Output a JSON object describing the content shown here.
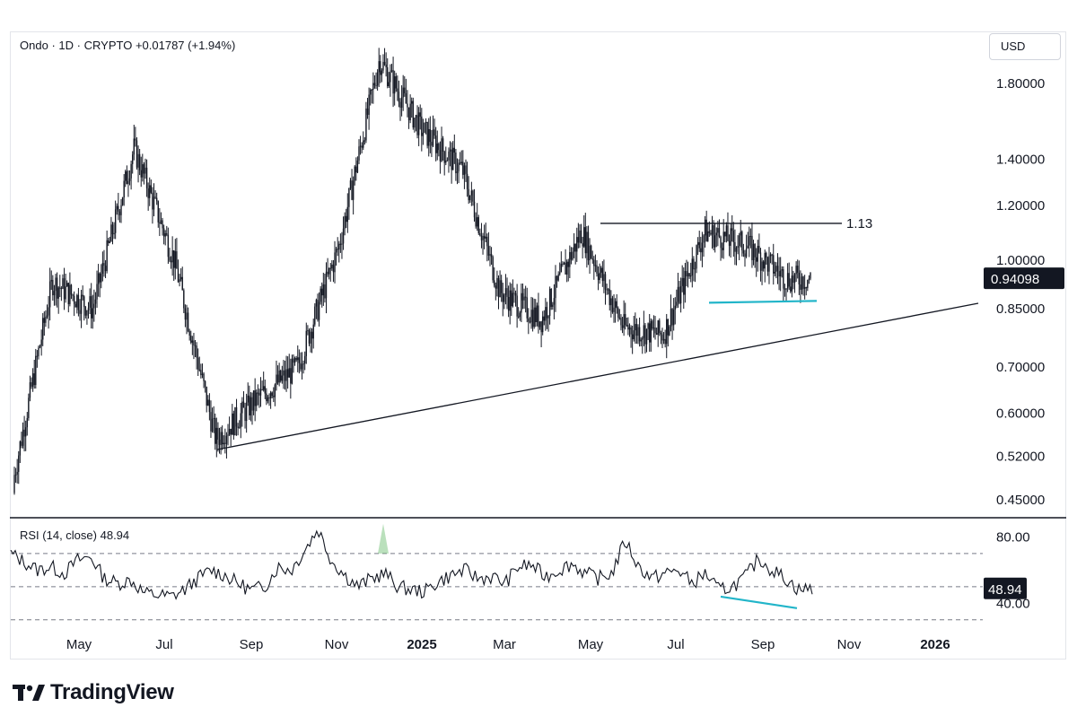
{
  "header": {
    "symbol": "Ondo",
    "interval": "1D",
    "exchange": "CRYPTO",
    "change": "+0.01787",
    "change_pct": "(+1.94%)",
    "sep": "·"
  },
  "currency_button": "USD",
  "price_axis": {
    "ticks": [
      "1.80000",
      "1.40000",
      "1.20000",
      "1.00000",
      "0.85000",
      "0.70000",
      "0.60000",
      "0.52000",
      "0.45000"
    ],
    "tick_values": [
      1.8,
      1.4,
      1.2,
      1.0,
      0.85,
      0.7,
      0.6,
      0.52,
      0.45
    ],
    "scale": "log",
    "current_price": "0.94098"
  },
  "rsi_panel": {
    "title": "RSI (14, close)",
    "value": "48.94",
    "ticks": [
      "80.00",
      "40.00"
    ],
    "badge": "48.94"
  },
  "resistance_label": "1.13",
  "time_axis": {
    "labels": [
      {
        "text": "May",
        "bold": false
      },
      {
        "text": "Jul",
        "bold": false
      },
      {
        "text": "Sep",
        "bold": false
      },
      {
        "text": "Nov",
        "bold": false
      },
      {
        "text": "2025",
        "bold": true
      },
      {
        "text": "Mar",
        "bold": false
      },
      {
        "text": "May",
        "bold": false
      },
      {
        "text": "Jul",
        "bold": false
      },
      {
        "text": "Sep",
        "bold": false
      },
      {
        "text": "Nov",
        "bold": false
      },
      {
        "text": "2026",
        "bold": true
      }
    ]
  },
  "footer": {
    "brand": "TradingView"
  },
  "colors": {
    "candle": "#131722",
    "trend": "#131722",
    "cyan": "#22b5c9",
    "badge": "#131722",
    "rsi_overbought": "#66bb6a"
  },
  "chart_data": {
    "type": "line",
    "title": "Ondo · 1D · CRYPTO",
    "scale": "log",
    "ylim": [
      0.43,
      2.0
    ],
    "x_labels": [
      "May",
      "Jul",
      "Sep",
      "Nov",
      "2025",
      "Mar",
      "May",
      "Jul",
      "Sep",
      "Nov",
      "2026"
    ],
    "price_series": {
      "name": "Ondo",
      "x": [
        "2024-03",
        "2024-04",
        "2024-05",
        "2024-06",
        "2024-07",
        "2024-08",
        "2024-09",
        "2024-10",
        "2024-11",
        "2024-12",
        "2025-01",
        "2025-02",
        "2025-03",
        "2025-04",
        "2025-05",
        "2025-06",
        "2025-07",
        "2025-08",
        "2025-09",
        "2025-10"
      ],
      "values": [
        0.46,
        0.93,
        0.85,
        1.45,
        1.0,
        0.55,
        0.63,
        0.7,
        1.05,
        1.95,
        1.55,
        1.35,
        0.9,
        0.82,
        1.1,
        0.8,
        0.78,
        1.1,
        1.05,
        0.94
      ]
    },
    "rsi_series": {
      "name": "RSI (14, close)",
      "ylim": [
        25,
        90
      ],
      "ticks": [
        80,
        40
      ],
      "last": 48.94,
      "values": [
        70,
        65,
        60,
        62,
        58,
        66,
        68,
        55,
        52,
        54,
        46,
        45,
        44,
        48,
        55,
        60,
        57,
        52,
        48,
        50,
        62,
        60,
        72,
        85,
        66,
        57,
        50,
        55,
        58,
        50,
        48,
        47,
        53,
        57,
        60,
        55,
        56,
        52,
        62,
        63,
        56,
        60,
        64,
        58,
        55,
        58,
        78,
        62,
        55,
        58,
        60,
        52,
        58,
        48,
        50,
        56,
        67,
        60,
        55,
        48,
        49
      ]
    },
    "annotations": [
      {
        "type": "horizontal",
        "label": "1.13",
        "value": 1.13
      },
      {
        "type": "trendline",
        "description": "rising support"
      },
      {
        "type": "cyan_support",
        "value": 0.87
      },
      {
        "type": "rsi_divergence"
      }
    ]
  }
}
